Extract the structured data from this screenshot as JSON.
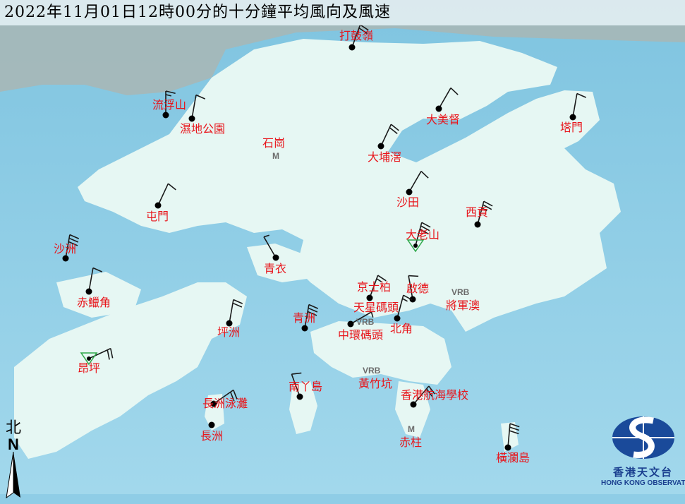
{
  "title": "2022年11月01日12時00分的十分鐘平均風向及風速",
  "colors": {
    "sea": "#8fcde6",
    "land": "#e6f7f3",
    "label": "#e8141a",
    "barb": "#1a1a1a",
    "triangle": "#2fa84a"
  },
  "stations": [
    {
      "name": "打鼓嶺",
      "dir_deg": 20,
      "barbs": 2,
      "marker": "dot"
    },
    {
      "name": "流浮山",
      "dir_deg": 0,
      "barbs": 1.5,
      "marker": "dot"
    },
    {
      "name": "濕地公園",
      "dir_deg": 10,
      "barbs": 1,
      "marker": "dot"
    },
    {
      "name": "大美督",
      "dir_deg": 30,
      "barbs": 1,
      "marker": "dot"
    },
    {
      "name": "塔門",
      "dir_deg": 10,
      "barbs": 1,
      "marker": "dot"
    },
    {
      "name": "大埔滘",
      "dir_deg": 25,
      "barbs": 2,
      "marker": "dot"
    },
    {
      "name": "沙田",
      "dir_deg": 30,
      "barbs": 1,
      "marker": "dot"
    },
    {
      "name": "屯門",
      "dir_deg": 25,
      "barbs": 1,
      "marker": "dot"
    },
    {
      "name": "西貢",
      "dir_deg": 15,
      "barbs": 2.5,
      "marker": "dot"
    },
    {
      "name": "大老山",
      "dir_deg": 15,
      "barbs": 3,
      "marker": "triangle"
    },
    {
      "name": "沙洲",
      "dir_deg": 10,
      "barbs": 3,
      "marker": "dot"
    },
    {
      "name": "青衣",
      "dir_deg": 330,
      "barbs": 0.5,
      "marker": "dot"
    },
    {
      "name": "赤鱲角",
      "dir_deg": 10,
      "barbs": 1,
      "marker": "dot"
    },
    {
      "name": "京士柏",
      "dir_deg": 20,
      "barbs": 1.5,
      "marker": "dot"
    },
    {
      "name": "啟德",
      "dir_deg": 350,
      "barbs": 1,
      "marker": "dot"
    },
    {
      "name": "天星碼頭",
      "dir_deg": 15,
      "barbs": 1.5,
      "marker": "dot"
    },
    {
      "name": "中環碼頭",
      "dir_deg": 60,
      "barbs": 0.5,
      "marker": "dot"
    },
    {
      "name": "北角",
      "dir_deg": null,
      "barbs": 0,
      "marker": "none"
    },
    {
      "name": "青洲",
      "dir_deg": 10,
      "barbs": 3,
      "marker": "dot"
    },
    {
      "name": "坪洲",
      "dir_deg": 10,
      "barbs": 2,
      "marker": "dot"
    },
    {
      "name": "昂坪",
      "dir_deg": 65,
      "barbs": 2,
      "marker": "triangle"
    },
    {
      "name": "南丫島",
      "dir_deg": 340,
      "barbs": 1,
      "marker": "dot"
    },
    {
      "name": "香港航海學校",
      "dir_deg": 40,
      "barbs": 2,
      "marker": "dot"
    },
    {
      "name": "長洲泳灘",
      "dir_deg": 55,
      "barbs": 2,
      "marker": "dot"
    },
    {
      "name": "長洲",
      "dir_deg": null,
      "barbs": 0,
      "marker": "dot"
    },
    {
      "name": "橫瀾島",
      "dir_deg": 5,
      "barbs": 3,
      "marker": "dot"
    }
  ],
  "markers": [
    {
      "station": "石崗",
      "text": "M"
    },
    {
      "station": "將軍澳",
      "text": "VRB"
    },
    {
      "station": "中環碼頭",
      "text": "VRB"
    },
    {
      "station": "黃竹坑",
      "text": "VRB"
    },
    {
      "station": "赤柱",
      "text": "M"
    }
  ],
  "area_labels": [
    "石崗",
    "將軍澳",
    "黃竹坑",
    "赤柱"
  ],
  "north": {
    "char": "北",
    "letter": "N"
  },
  "logo": {
    "zh": "香港天文台",
    "en": "HONG KONG OBSERVATORY"
  }
}
